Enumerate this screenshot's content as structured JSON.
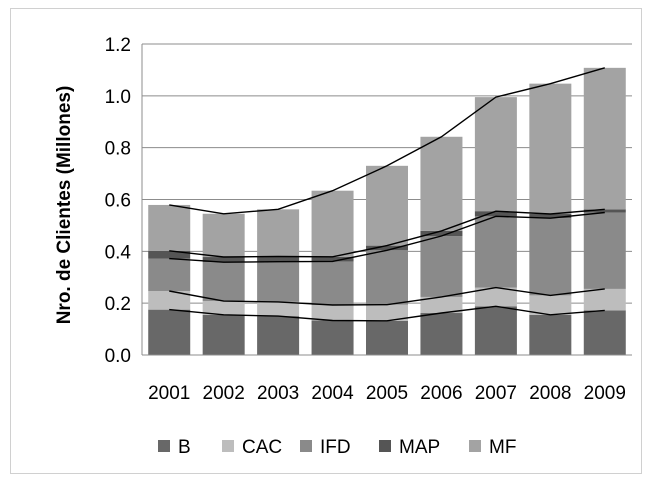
{
  "chart_data": {
    "type": "bar",
    "stacked": true,
    "categories": [
      "2001",
      "2002",
      "2003",
      "2004",
      "2005",
      "2006",
      "2007",
      "2008",
      "2009"
    ],
    "series": [
      {
        "name": "B",
        "color": "#686868",
        "values": [
          0.175,
          0.155,
          0.15,
          0.133,
          0.132,
          0.162,
          0.188,
          0.155,
          0.172
        ]
      },
      {
        "name": "CAC",
        "color": "#bdbdbd",
        "values": [
          0.072,
          0.053,
          0.055,
          0.06,
          0.062,
          0.062,
          0.072,
          0.075,
          0.083
        ]
      },
      {
        "name": "IFD",
        "color": "#8a8a8a",
        "values": [
          0.125,
          0.15,
          0.155,
          0.168,
          0.21,
          0.235,
          0.275,
          0.298,
          0.295
        ]
      },
      {
        "name": "MAP",
        "color": "#555555",
        "values": [
          0.03,
          0.02,
          0.02,
          0.018,
          0.018,
          0.02,
          0.02,
          0.016,
          0.012
        ]
      },
      {
        "name": "MF",
        "color": "#a3a3a3",
        "values": [
          0.177,
          0.167,
          0.182,
          0.255,
          0.308,
          0.363,
          0.44,
          0.503,
          0.546
        ]
      }
    ],
    "ylabel": "Nro. de Clientes (Millones)",
    "xlabel": "",
    "ylim": [
      0,
      1.2
    ],
    "yticks": [
      "0.0",
      "0.2",
      "0.4",
      "0.6",
      "0.8",
      "1.0",
      "1.2"
    ],
    "grid": true,
    "legend_position": "bottom"
  }
}
